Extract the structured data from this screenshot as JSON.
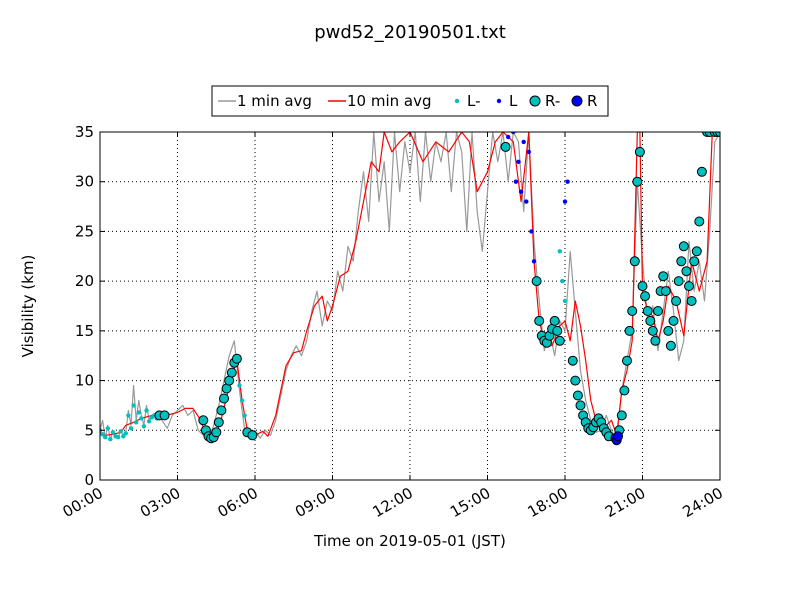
{
  "chart_data": {
    "type": "line",
    "title": "pwd52_20190501.txt",
    "xlabel": "Time on 2019-05-01 (JST)",
    "ylabel": "Visibility (km)",
    "xlim": [
      "00:00",
      "24:00"
    ],
    "ylim": [
      0,
      35
    ],
    "grid": true,
    "legend_position": "top-center",
    "x_ticks": [
      "00:00",
      "03:00",
      "06:00",
      "09:00",
      "12:00",
      "15:00",
      "18:00",
      "21:00",
      "24:00"
    ],
    "y_ticks": [
      0,
      5,
      10,
      15,
      20,
      25,
      30,
      35
    ],
    "legend": [
      "1 min avg",
      "10 min avg",
      "L-",
      "L",
      "R-",
      "R"
    ],
    "colors": {
      "min1": "#999999",
      "min10": "#ff0000",
      "Lminus": "#00bfbf",
      "L": "#0000ff",
      "Rminus": "#00bfbf",
      "R": "#0000ff"
    },
    "series": [
      {
        "name": "10 min avg",
        "x": [
          0.0,
          0.2,
          0.5,
          0.8,
          1.0,
          1.3,
          1.6,
          2.0,
          2.4,
          2.7,
          3.0,
          3.3,
          3.6,
          3.9,
          4.1,
          4.3,
          4.5,
          4.7,
          4.9,
          5.1,
          5.3,
          5.5,
          5.7,
          6.0,
          6.3,
          6.5,
          6.8,
          7.0,
          7.2,
          7.5,
          7.8,
          8.0,
          8.3,
          8.6,
          8.8,
          9.0,
          9.3,
          9.6,
          9.9,
          10.2,
          10.5,
          10.8,
          11.0,
          11.3,
          11.6,
          12.0,
          12.5,
          13.0,
          13.5,
          14.0,
          14.3,
          14.6,
          15.0,
          15.3,
          15.6,
          16.0,
          16.3,
          16.6,
          16.8,
          17.0,
          17.2,
          17.5,
          17.8,
          18.0,
          18.2,
          18.4,
          18.6,
          18.8,
          19.0,
          19.2,
          19.4,
          19.6,
          19.8,
          20.0,
          20.2,
          20.4,
          20.6,
          20.8,
          20.9,
          21.0,
          21.2,
          21.4,
          21.6,
          21.8,
          22.0,
          22.3,
          22.6,
          22.9,
          23.2,
          23.5,
          23.7,
          24.0
        ],
        "y": [
          4.8,
          4.5,
          4.6,
          4.8,
          5.5,
          5.8,
          6.2,
          6.5,
          6.8,
          6.6,
          6.8,
          7.2,
          7.2,
          6.0,
          4.5,
          4.2,
          4.6,
          6.2,
          8.3,
          10.5,
          12.0,
          8.0,
          5.0,
          4.5,
          4.9,
          4.4,
          6.5,
          9.0,
          11.5,
          12.8,
          13.0,
          15.0,
          17.5,
          18.5,
          16.0,
          17.5,
          20.5,
          21.0,
          24.0,
          28.0,
          32.0,
          31.0,
          35.0,
          33.0,
          34.0,
          35.0,
          32.0,
          34.0,
          33.0,
          35.0,
          34.0,
          29.0,
          31.0,
          34.0,
          35.0,
          34.0,
          28.0,
          35.0,
          22.0,
          16.0,
          14.0,
          13.5,
          15.5,
          16.0,
          14.0,
          18.0,
          15.5,
          12.0,
          8.0,
          6.0,
          5.0,
          5.5,
          6.0,
          4.5,
          9.0,
          11.0,
          14.0,
          35.0,
          35.0,
          19.0,
          17.0,
          16.5,
          14.0,
          16.0,
          19.5,
          18.0,
          14.5,
          22.0,
          19.0,
          22.0,
          35.0,
          35.0
        ]
      },
      {
        "name": "1 min avg",
        "x": [
          0.0,
          0.1,
          0.2,
          0.3,
          0.4,
          0.5,
          0.6,
          0.7,
          0.8,
          0.9,
          1.0,
          1.1,
          1.2,
          1.3,
          1.4,
          1.5,
          1.6,
          1.7,
          1.8,
          1.9,
          2.0,
          2.2,
          2.4,
          2.6,
          2.8,
          3.0,
          3.2,
          3.4,
          3.6,
          3.8,
          4.0,
          4.2,
          4.4,
          4.6,
          4.8,
          5.0,
          5.2,
          5.4,
          5.6,
          5.8,
          6.0,
          6.2,
          6.4,
          6.6,
          6.8,
          7.0,
          7.2,
          7.4,
          7.6,
          7.8,
          8.0,
          8.2,
          8.4,
          8.6,
          8.8,
          9.0,
          9.2,
          9.4,
          9.6,
          9.8,
          10.0,
          10.2,
          10.4,
          10.6,
          10.8,
          11.0,
          11.2,
          11.4,
          11.6,
          11.8,
          12.0,
          12.2,
          12.4,
          12.6,
          12.8,
          13.0,
          13.2,
          13.4,
          13.6,
          13.8,
          14.0,
          14.2,
          14.4,
          14.6,
          14.8,
          15.0,
          15.2,
          15.4,
          15.6,
          15.8,
          16.0,
          16.2,
          16.4,
          16.6,
          16.8,
          17.0,
          17.2,
          17.4,
          17.6,
          17.8,
          18.0,
          18.2,
          18.4,
          18.6,
          18.8,
          19.0,
          19.2,
          19.4,
          19.6,
          19.8,
          20.0,
          20.2,
          20.4,
          20.6,
          20.8,
          21.0,
          21.2,
          21.4,
          21.6,
          21.8,
          22.0,
          22.2,
          22.4,
          22.6,
          22.8,
          23.0,
          23.2,
          23.4,
          23.6,
          23.8,
          24.0
        ],
        "y": [
          5.0,
          6.0,
          4.2,
          5.5,
          4.0,
          5.0,
          4.5,
          4.2,
          5.0,
          4.5,
          4.8,
          7.0,
          5.5,
          9.5,
          6.0,
          8.0,
          6.5,
          5.5,
          7.5,
          6.0,
          6.5,
          6.8,
          6.0,
          5.2,
          6.5,
          7.0,
          7.5,
          6.5,
          7.0,
          5.0,
          4.5,
          4.2,
          5.5,
          7.5,
          10.0,
          12.5,
          14.0,
          9.0,
          5.0,
          4.5,
          5.0,
          4.2,
          5.0,
          4.5,
          6.0,
          8.5,
          11.0,
          12.5,
          13.5,
          12.5,
          14.0,
          17.0,
          19.0,
          15.5,
          18.0,
          17.0,
          21.0,
          19.0,
          23.5,
          22.0,
          27.0,
          31.0,
          26.0,
          35.0,
          28.0,
          32.0,
          25.0,
          35.0,
          29.0,
          34.0,
          31.0,
          35.0,
          28.0,
          35.0,
          30.0,
          34.0,
          32.0,
          35.0,
          29.0,
          35.0,
          33.0,
          25.0,
          35.0,
          27.0,
          23.0,
          29.0,
          35.0,
          32.0,
          35.0,
          30.0,
          35.0,
          34.0,
          27.0,
          35.0,
          24.0,
          18.0,
          13.0,
          15.0,
          12.5,
          16.0,
          15.0,
          23.0,
          17.0,
          11.0,
          8.0,
          6.0,
          4.8,
          5.0,
          6.5,
          5.0,
          4.0,
          9.0,
          12.0,
          15.0,
          30.0,
          22.0,
          16.0,
          17.5,
          13.0,
          17.0,
          21.0,
          17.0,
          12.0,
          14.0,
          24.0,
          19.0,
          22.0,
          18.0,
          25.0,
          34.0,
          35.0
        ]
      },
      {
        "name": "L-",
        "x": [
          0.0,
          0.1,
          0.2,
          0.3,
          0.4,
          0.5,
          0.6,
          0.7,
          0.8,
          0.9,
          1.0,
          1.1,
          1.2,
          1.3,
          1.4,
          1.5,
          1.6,
          1.7,
          1.8,
          1.9,
          2.0,
          2.1,
          2.2,
          5.4,
          5.5,
          5.6,
          17.8,
          17.9,
          18.0
        ],
        "y": [
          5.0,
          4.6,
          4.3,
          5.2,
          4.1,
          4.8,
          4.4,
          4.3,
          4.9,
          4.4,
          4.7,
          6.5,
          5.2,
          7.5,
          5.8,
          6.8,
          6.2,
          5.4,
          7.0,
          5.9,
          6.3,
          6.5,
          6.2,
          9.5,
          8.0,
          6.5,
          23.0,
          20.0,
          18.0
        ]
      },
      {
        "name": "L",
        "x": [
          15.8,
          16.0,
          16.1,
          16.2,
          16.3,
          16.4,
          16.5,
          16.6,
          16.7,
          16.8,
          18.0,
          18.1,
          19.8,
          19.9,
          20.0
        ],
        "y": [
          34.5,
          35.0,
          30.0,
          32.0,
          29.0,
          34.0,
          28.0,
          33.0,
          25.0,
          22.0,
          28.0,
          30.0,
          4.3,
          4.1,
          4.5
        ]
      },
      {
        "name": "R-",
        "x": [
          2.3,
          2.5,
          4.0,
          4.1,
          4.2,
          4.3,
          4.4,
          4.5,
          4.6,
          4.7,
          4.8,
          4.9,
          5.0,
          5.1,
          5.2,
          5.3,
          5.7,
          5.9,
          15.7,
          16.9,
          17.0,
          17.1,
          17.2,
          17.3,
          17.4,
          17.5,
          17.6,
          17.7,
          17.8,
          18.3,
          18.4,
          18.5,
          18.6,
          18.7,
          18.8,
          18.9,
          19.0,
          19.1,
          19.2,
          19.3,
          19.4,
          19.5,
          19.6,
          19.7,
          20.1,
          20.2,
          20.3,
          20.4,
          20.5,
          20.6,
          20.7,
          20.8,
          20.9,
          21.0,
          21.1,
          21.2,
          21.3,
          21.4,
          21.5,
          21.6,
          21.7,
          21.8,
          21.9,
          22.0,
          22.1,
          22.2,
          22.3,
          22.4,
          22.5,
          22.6,
          22.7,
          22.8,
          22.9,
          23.0,
          23.1,
          23.2,
          23.3,
          23.5,
          23.6,
          23.8,
          23.9,
          24.0
        ],
        "y": [
          6.5,
          6.5,
          6.0,
          5.0,
          4.4,
          4.2,
          4.3,
          4.8,
          5.8,
          7.0,
          8.2,
          9.2,
          10.0,
          10.8,
          11.8,
          12.2,
          4.8,
          4.5,
          33.5,
          20.0,
          16.0,
          14.5,
          14.0,
          13.8,
          14.5,
          15.2,
          16.0,
          15.0,
          14.0,
          12.0,
          10.0,
          8.5,
          7.5,
          6.5,
          5.8,
          5.2,
          5.0,
          5.3,
          5.8,
          6.2,
          5.8,
          5.2,
          4.8,
          4.4,
          5.0,
          6.5,
          9.0,
          12.0,
          15.0,
          17.0,
          22.0,
          30.0,
          33.0,
          19.5,
          18.5,
          17.0,
          16.0,
          15.0,
          14.0,
          17.0,
          19.0,
          20.5,
          19.0,
          15.0,
          13.5,
          16.0,
          18.0,
          20.0,
          22.0,
          23.5,
          21.0,
          19.5,
          18.0,
          22.0,
          23.0,
          26.0,
          31.0,
          35.0,
          35.0,
          35.0,
          35.0,
          35.0
        ],
        "y_note": ""
      },
      {
        "name": "R",
        "x": [
          19.95,
          20.0,
          20.05
        ],
        "y": [
          4.2,
          4.0,
          4.4
        ]
      }
    ]
  }
}
